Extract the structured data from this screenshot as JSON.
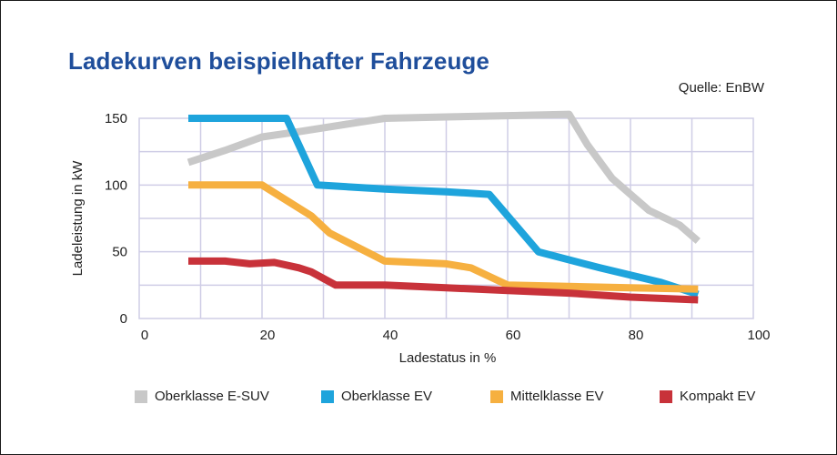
{
  "chart_data": {
    "type": "line",
    "title": "Ladekurven beispielhafter Fahrzeuge",
    "source": "Quelle: EnBW",
    "xlabel": "Ladestatus in %",
    "ylabel": "Ladeleistung in kW",
    "xlim": [
      0,
      100
    ],
    "ylim": [
      0,
      150
    ],
    "x_ticks": [
      0,
      20,
      40,
      60,
      80,
      100
    ],
    "y_ticks": [
      0,
      50,
      100,
      150
    ],
    "grid": true,
    "legend_position": "bottom",
    "series": [
      {
        "name": "Oberklasse E-SUV",
        "color": "#c8c8c8",
        "points": [
          [
            8,
            117
          ],
          [
            14,
            126
          ],
          [
            20,
            136
          ],
          [
            26,
            140
          ],
          [
            33,
            145
          ],
          [
            40,
            150
          ],
          [
            50,
            151
          ],
          [
            60,
            152
          ],
          [
            70,
            153
          ],
          [
            73,
            130
          ],
          [
            77,
            105
          ],
          [
            83,
            81
          ],
          [
            88,
            70
          ],
          [
            91,
            58
          ]
        ]
      },
      {
        "name": "Oberklasse EV",
        "color": "#1ea4dc",
        "points": [
          [
            8,
            150
          ],
          [
            24,
            150
          ],
          [
            29,
            100
          ],
          [
            40,
            97
          ],
          [
            50,
            95
          ],
          [
            57,
            93
          ],
          [
            65,
            50
          ],
          [
            75,
            38
          ],
          [
            85,
            27
          ],
          [
            91,
            18
          ]
        ]
      },
      {
        "name": "Mittelklasse EV",
        "color": "#f6b040",
        "points": [
          [
            8,
            100
          ],
          [
            20,
            100
          ],
          [
            28,
            77
          ],
          [
            31,
            64
          ],
          [
            40,
            43
          ],
          [
            50,
            41
          ],
          [
            54,
            38
          ],
          [
            60,
            25
          ],
          [
            70,
            24
          ],
          [
            80,
            23
          ],
          [
            91,
            22
          ]
        ]
      },
      {
        "name": "Kompakt EV",
        "color": "#c8323a",
        "points": [
          [
            8,
            43
          ],
          [
            14,
            43
          ],
          [
            18,
            41
          ],
          [
            22,
            42
          ],
          [
            26,
            38
          ],
          [
            28,
            35
          ],
          [
            32,
            25
          ],
          [
            40,
            25
          ],
          [
            50,
            23
          ],
          [
            60,
            21
          ],
          [
            70,
            19
          ],
          [
            80,
            16
          ],
          [
            91,
            14
          ]
        ]
      }
    ]
  }
}
